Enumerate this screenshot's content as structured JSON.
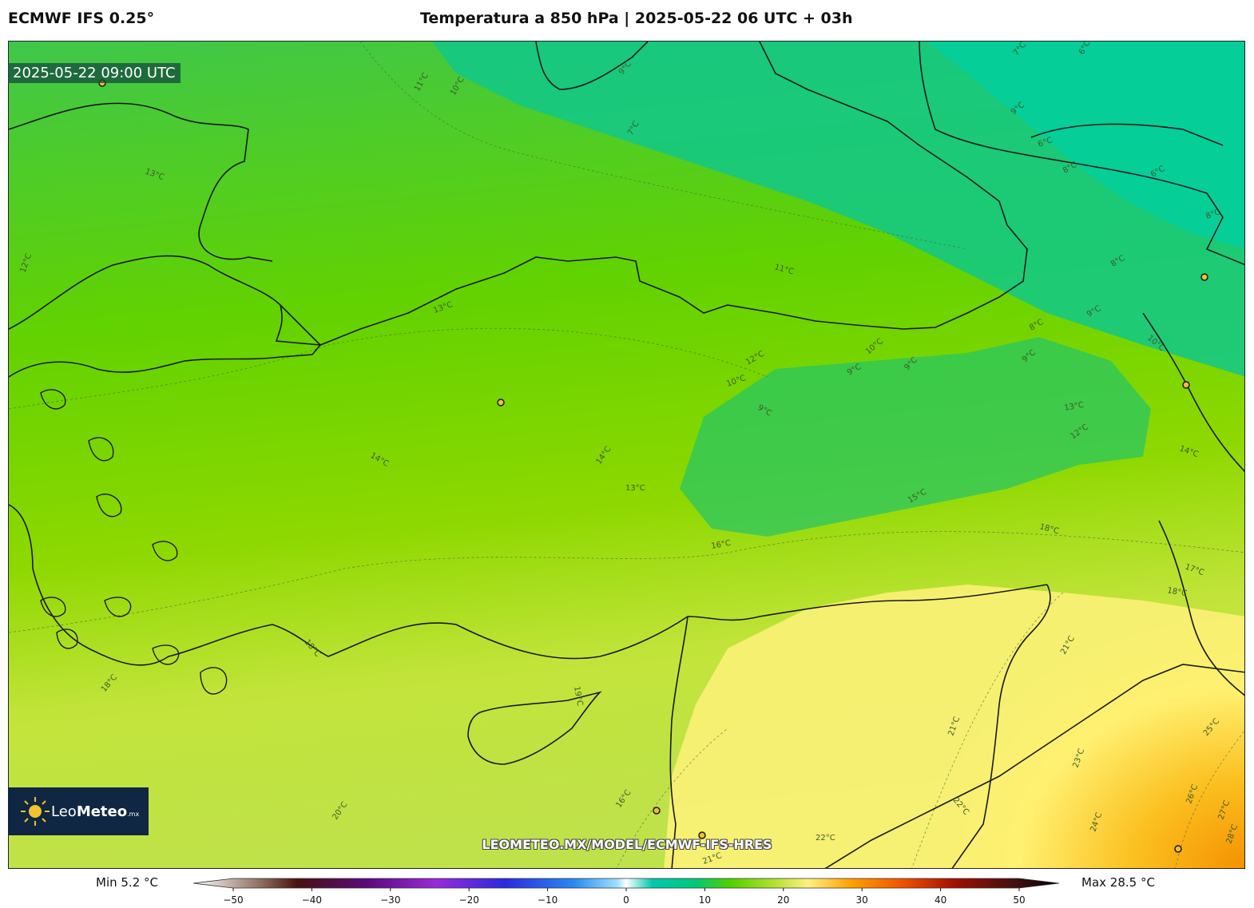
{
  "header": {
    "model": "ECMWF IFS 0.25°",
    "title": "Temperatura a 850 hPa | 2025-05-22 06 UTC + 03h"
  },
  "map": {
    "valid_time": "2025-05-22 09:00 UTC",
    "watermark": "LEOMETEO.MX/MODEL/ECMWF-IFS-HRES",
    "logo": {
      "brand_light": "Leo",
      "brand_bold": "Meteo",
      "suffix": ".mx"
    },
    "contour_labels": [
      "11°C",
      "10°C",
      "9°C",
      "7°C",
      "6°C",
      "9°C",
      "6°C",
      "7°C",
      "6°C",
      "8°C",
      "8°C",
      "13°C",
      "12°C",
      "13°C",
      "11°C",
      "8°C",
      "9°C",
      "8°C",
      "9°C",
      "10°C",
      "9°C",
      "12°C",
      "10°C",
      "9°C",
      "10°C",
      "9°C",
      "13°C",
      "12°C",
      "14°C",
      "14°C",
      "14°C",
      "13°C",
      "15°C",
      "16°C",
      "18°C",
      "17°C",
      "18°C",
      "18°C",
      "18°C",
      "19°C",
      "16°C",
      "20°C",
      "22°C",
      "21°C",
      "21°C",
      "22°C",
      "23°C",
      "24°C",
      "25°C",
      "26°C",
      "27°C",
      "28°C",
      "21°C"
    ]
  },
  "colorbar": {
    "min_label": "Min 5.2 °C",
    "max_label": "Max 28.5 °C",
    "ticks": [
      "−50",
      "−40",
      "−30",
      "−20",
      "−10",
      "0",
      "10",
      "20",
      "30",
      "40",
      "50"
    ],
    "stops": [
      {
        "v": -50,
        "c": "#ffffff"
      },
      {
        "v": -42,
        "c": "#8a6a5a"
      },
      {
        "v": -38,
        "c": "#4a1010"
      },
      {
        "v": -30,
        "c": "#5a0a7a"
      },
      {
        "v": -22,
        "c": "#9a2ad8"
      },
      {
        "v": -14,
        "c": "#2a2ae0"
      },
      {
        "v": -6,
        "c": "#2a8af0"
      },
      {
        "v": -1,
        "c": "#a0e0ff"
      },
      {
        "v": 0,
        "c": "#ffffff"
      },
      {
        "v": 3,
        "c": "#00c8b0"
      },
      {
        "v": 8,
        "c": "#00c878"
      },
      {
        "v": 12,
        "c": "#50d000"
      },
      {
        "v": 17,
        "c": "#b0e030"
      },
      {
        "v": 21,
        "c": "#fff080"
      },
      {
        "v": 26,
        "c": "#ffa000"
      },
      {
        "v": 32,
        "c": "#f05000"
      },
      {
        "v": 38,
        "c": "#a01000"
      },
      {
        "v": 45,
        "c": "#401010"
      },
      {
        "v": 50,
        "c": "#000000"
      }
    ]
  },
  "colors": {
    "cool": "#00c878",
    "mid": "#50d000",
    "warm": "#fff080",
    "hot": "#ffa000"
  }
}
